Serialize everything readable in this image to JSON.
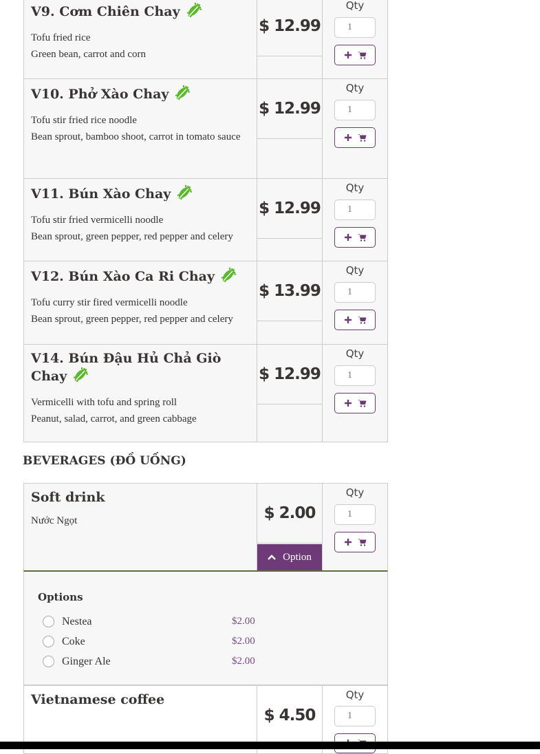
{
  "qty_label": "Qty",
  "items": [
    {
      "title": "V9. Cơm Chiên Chay",
      "veg": true,
      "lines": [
        "Tofu fried rice",
        "Green bean, carrot and corn"
      ],
      "price": "$ 12.99",
      "qty": "1"
    },
    {
      "title": "V10. Phở Xào Chay",
      "veg": true,
      "lines": [
        "Tofu stir fried rice noodle",
        "Bean sprout, bamboo shoot, carrot in tomato sauce"
      ],
      "price": "$ 12.99",
      "qty": "1"
    },
    {
      "title": "V11. Bún Xào Chay",
      "veg": true,
      "lines": [
        "Tofu stir fried vermicelli noodle",
        "Bean sprout, green pepper, red pepper and celery"
      ],
      "price": "$ 12.99",
      "qty": "1"
    },
    {
      "title": "V12. Bún Xào Ca Ri Chay",
      "veg": true,
      "lines": [
        "Tofu curry stir fired vermicelli noodle",
        "Bean sprout, green pepper, red pepper and celery"
      ],
      "price": "$ 13.99",
      "qty": "1"
    },
    {
      "title": "V14. Bún Đậu Hủ Chả Giò Chay",
      "veg": true,
      "lines": [
        "Vermicelli with tofu and spring roll",
        "Peanut, salad, carrot, and green cabbage"
      ],
      "price": "$ 12.99",
      "qty": "1"
    }
  ],
  "beverages": {
    "heading": "BEVERAGES (ĐỒ UỐNG)",
    "items": [
      {
        "title": "Soft drink",
        "lines": [
          "Nước Ngọt"
        ],
        "price": "$ 2.00",
        "qty": "1",
        "option_button": "Option",
        "expanded": true
      },
      {
        "title": "Vietnamese coffee",
        "lines": [],
        "price": "$ 4.50",
        "qty": "1"
      }
    ],
    "options": {
      "heading": "Options",
      "choices": [
        {
          "label": "Nestea",
          "price": "$2.00"
        },
        {
          "label": "Coke",
          "price": "$2.00"
        },
        {
          "label": "Ginger Ale",
          "price": "$2.00"
        }
      ]
    }
  },
  "colors": {
    "accent": "#6e3b78",
    "veg": "#5cb82e"
  }
}
